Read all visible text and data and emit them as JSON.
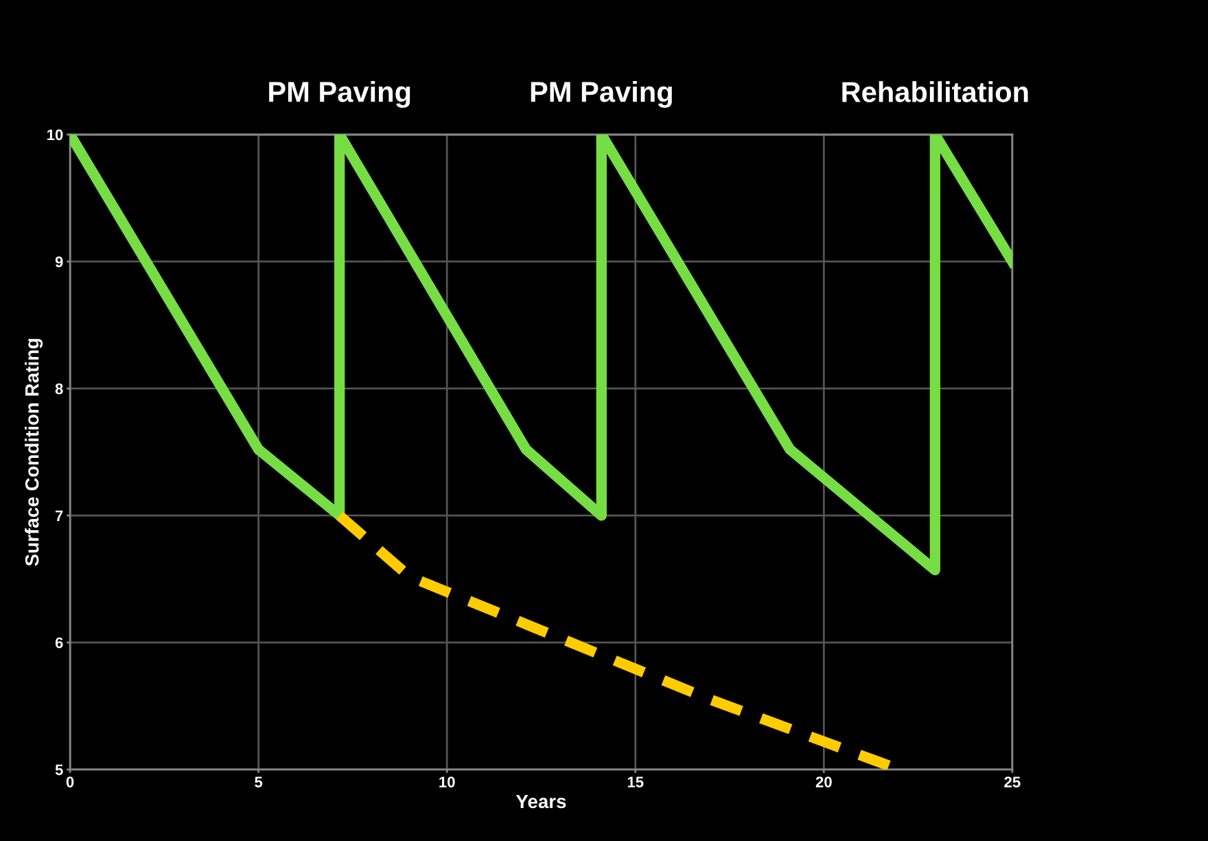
{
  "chart_data": {
    "type": "line",
    "xlabel": "Years",
    "ylabel": "Surface Condition Rating",
    "xlim": [
      0,
      25
    ],
    "xticks": [
      0,
      5,
      10,
      15,
      20,
      25
    ],
    "ylim": [
      5,
      10
    ],
    "yticks": [
      5,
      6,
      7,
      8,
      9,
      10
    ],
    "grid": true,
    "legend": false,
    "series": [
      {
        "color": "#77dd44",
        "line_style": "solid",
        "x": [
          0,
          5,
          7.15,
          7.15,
          12.1,
          14.1,
          14.1,
          19.1,
          22.95,
          22.95,
          25
        ],
        "values": [
          10,
          7.52,
          7.0,
          10,
          7.52,
          7.0,
          10,
          7.52,
          6.57,
          10,
          9.0
        ]
      },
      {
        "color": "#ffcc00",
        "line_style": "dashed",
        "x": [
          7.15,
          9.0,
          17,
          22.0
        ],
        "values": [
          7.0,
          6.52,
          5.55,
          5.0
        ]
      }
    ],
    "annotations": [
      {
        "text": "PM Paving",
        "x": 7.15,
        "y": 10
      },
      {
        "text": "PM Paving",
        "x": 14.1,
        "y": 10
      },
      {
        "text": "Rehabilitation",
        "x": 22.95,
        "y": 10
      }
    ]
  }
}
